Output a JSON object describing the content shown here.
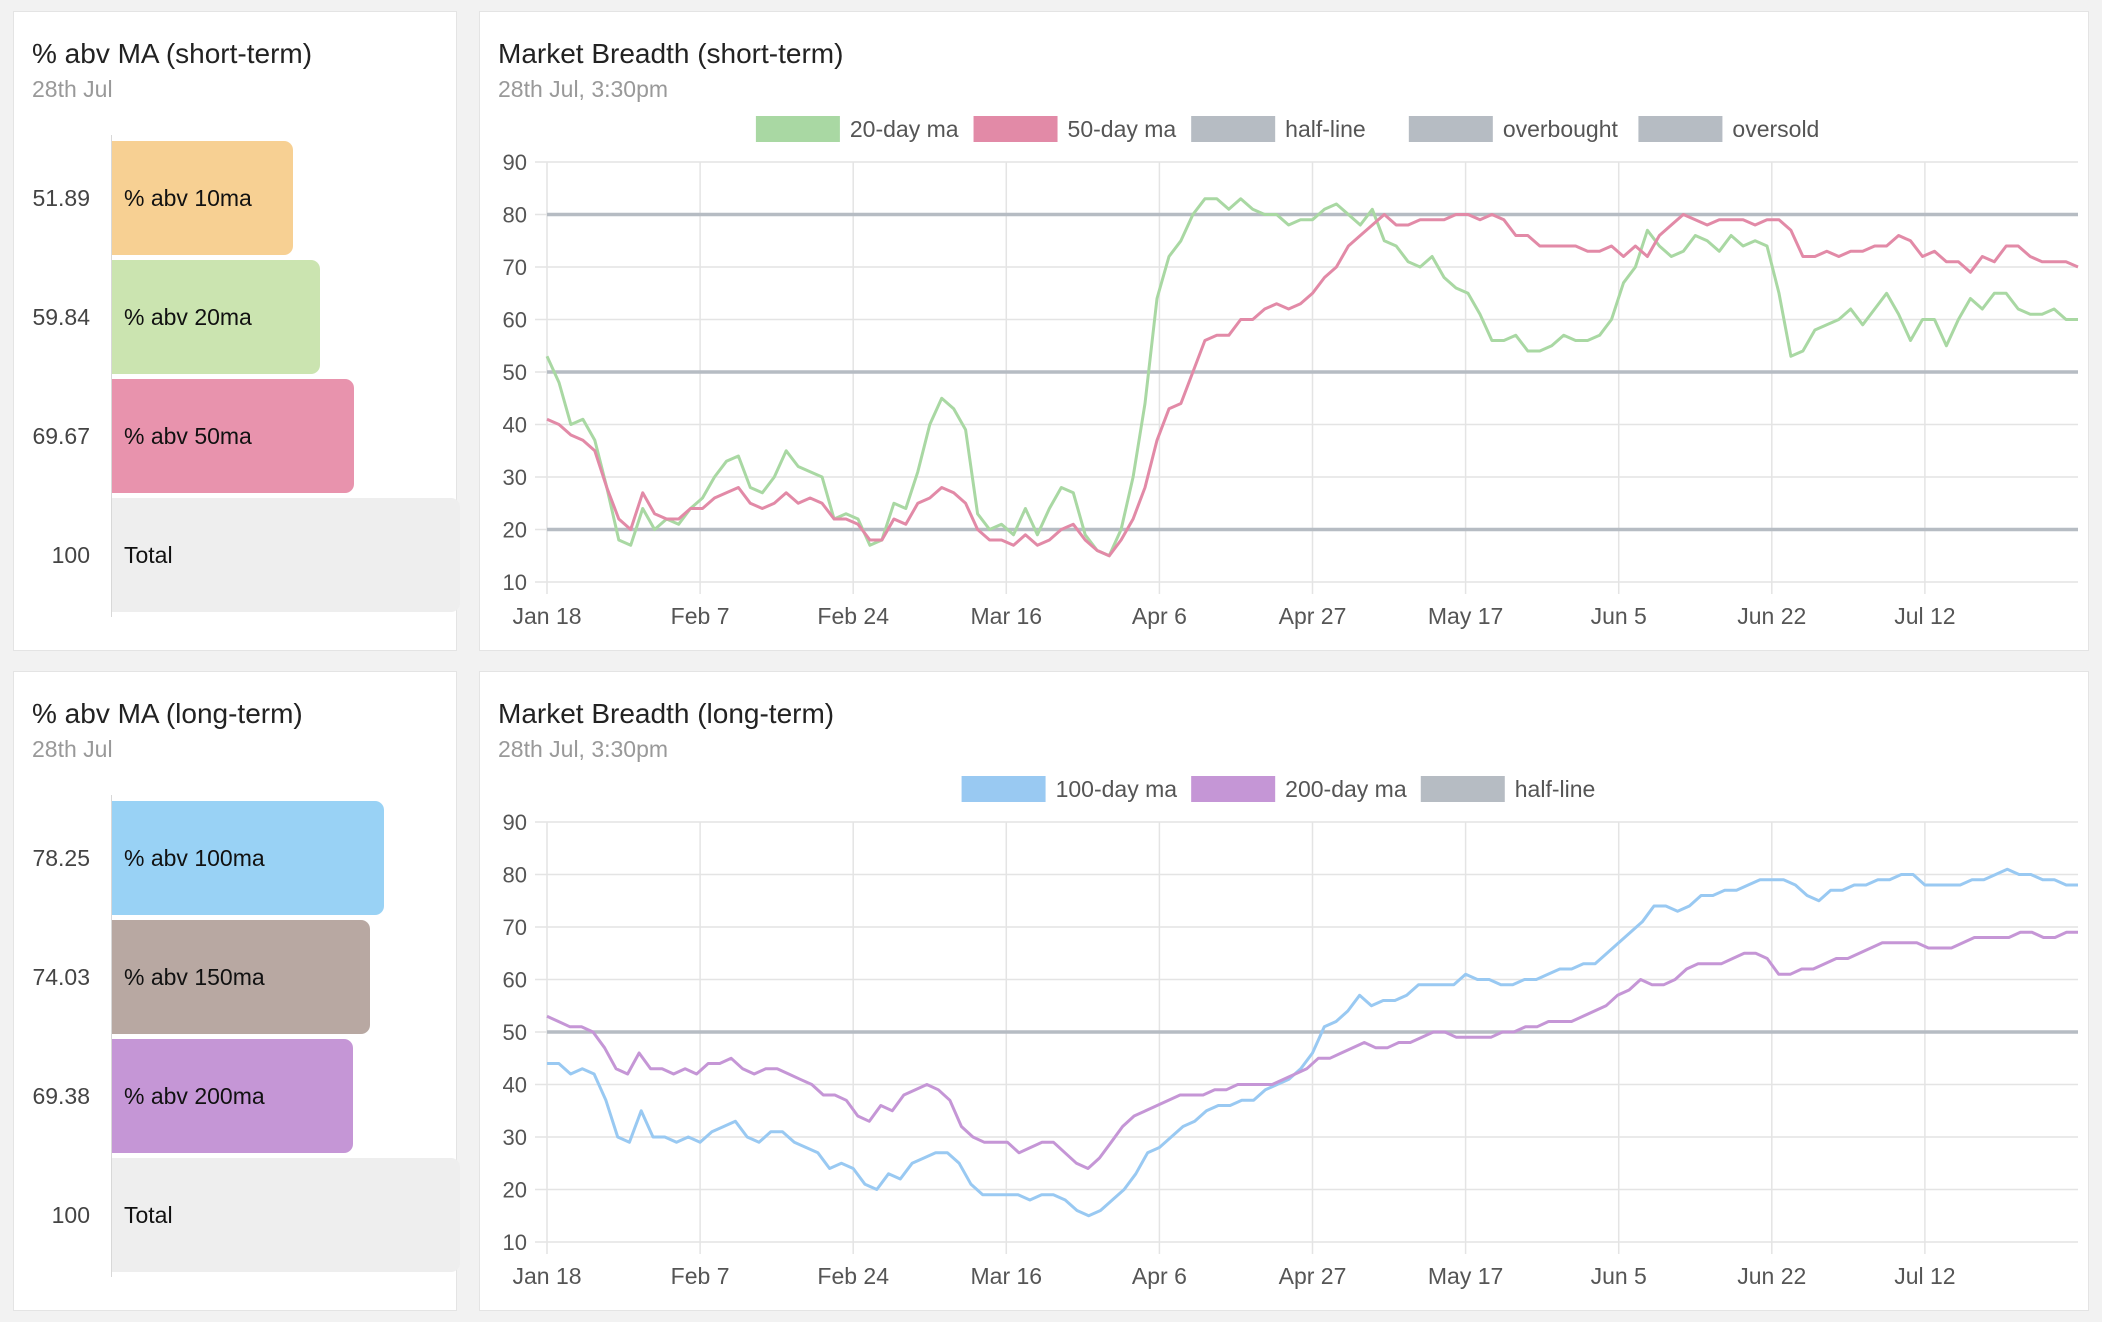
{
  "short_bars": {
    "title": "% abv MA (short-term)",
    "subtitle": "28th Jul",
    "bars": [
      {
        "label": "% abv 10ma",
        "value": 51.89,
        "value_text": "51.89",
        "color": "#f7d093"
      },
      {
        "label": "% abv 20ma",
        "value": 59.84,
        "value_text": "59.84",
        "color": "#cbe4b0"
      },
      {
        "label": "% abv 50ma",
        "value": 69.67,
        "value_text": "69.67",
        "color": "#e893ad"
      },
      {
        "label": "Total",
        "value": 100,
        "value_text": "100",
        "color": "#eeeeee"
      }
    ]
  },
  "long_bars": {
    "title": "% abv MA (long-term)",
    "subtitle": "28th Jul",
    "bars": [
      {
        "label": "% abv 100ma",
        "value": 78.25,
        "value_text": "78.25",
        "color": "#99d2f5"
      },
      {
        "label": "% abv 150ma",
        "value": 74.03,
        "value_text": "74.03",
        "color": "#b8a8a2"
      },
      {
        "label": "% abv 200ma",
        "value": 69.38,
        "value_text": "69.38",
        "color": "#c596d6"
      },
      {
        "label": "Total",
        "value": 100,
        "value_text": "100",
        "color": "#eeeeee"
      }
    ]
  },
  "short_chart": {
    "title": "Market Breadth (short-term)",
    "subtitle": "28th Jul, 3:30pm"
  },
  "long_chart": {
    "title": "Market Breadth (long-term)",
    "subtitle": "28th Jul, 3:30pm"
  },
  "chart_data": [
    {
      "type": "bar",
      "orientation": "horizontal",
      "title": "% abv MA (short-term)",
      "categories": [
        "% abv 10ma",
        "% abv 20ma",
        "% abv 50ma",
        "Total"
      ],
      "values": [
        51.89,
        59.84,
        69.67,
        100
      ]
    },
    {
      "type": "line",
      "title": "Market Breadth (short-term)",
      "x_ticks": [
        "Jan 18",
        "Feb 7",
        "Feb 24",
        "Mar 16",
        "Apr 6",
        "Apr 27",
        "May 17",
        "Jun 5",
        "Jun 22",
        "Jul 12"
      ],
      "ylim": [
        10,
        90
      ],
      "y_ticks": [
        10,
        20,
        30,
        40,
        50,
        60,
        70,
        80,
        90
      ],
      "grid": true,
      "legend": "top",
      "series": [
        {
          "name": "20-day ma",
          "color": "#a9d8a3",
          "values": [
            53,
            48,
            40,
            41,
            37,
            28,
            18,
            17,
            24,
            20,
            22,
            21,
            24,
            26,
            30,
            33,
            34,
            28,
            27,
            30,
            35,
            32,
            31,
            30,
            22,
            23,
            22,
            17,
            18,
            25,
            24,
            31,
            40,
            45,
            43,
            39,
            23,
            20,
            21,
            19,
            24,
            19,
            24,
            28,
            27,
            19,
            16,
            15,
            20,
            30,
            44,
            64,
            72,
            75,
            80,
            83,
            83,
            81,
            83,
            81,
            80,
            80,
            78,
            79,
            79,
            81,
            82,
            80,
            78,
            81,
            75,
            74,
            71,
            70,
            72,
            68,
            66,
            65,
            61,
            56,
            56,
            57,
            54,
            54,
            55,
            57,
            56,
            56,
            57,
            60,
            67,
            70,
            77,
            74,
            72,
            73,
            76,
            75,
            73,
            76,
            74,
            75,
            74,
            65,
            53,
            54,
            58,
            59,
            60,
            62,
            59,
            62,
            65,
            61,
            56,
            60,
            60,
            55,
            60,
            64,
            62,
            65,
            65,
            62,
            61,
            61,
            62,
            60,
            60
          ]
        },
        {
          "name": "50-day ma",
          "color": "#e28aa7",
          "values": [
            41,
            40,
            38,
            37,
            35,
            28,
            22,
            20,
            27,
            23,
            22,
            22,
            24,
            24,
            26,
            27,
            28,
            25,
            24,
            25,
            27,
            25,
            26,
            25,
            22,
            22,
            21,
            18,
            18,
            22,
            21,
            25,
            26,
            28,
            27,
            25,
            20,
            18,
            18,
            17,
            19,
            17,
            18,
            20,
            21,
            18,
            16,
            15,
            18,
            22,
            28,
            37,
            43,
            44,
            50,
            56,
            57,
            57,
            60,
            60,
            62,
            63,
            62,
            63,
            65,
            68,
            70,
            74,
            76,
            78,
            80,
            78,
            78,
            79,
            79,
            79,
            80,
            80,
            79,
            80,
            79,
            76,
            76,
            74,
            74,
            74,
            74,
            73,
            73,
            74,
            72,
            74,
            72,
            76,
            78,
            80,
            79,
            78,
            79,
            79,
            79,
            78,
            79,
            79,
            77,
            72,
            72,
            73,
            72,
            73,
            73,
            74,
            74,
            76,
            75,
            72,
            73,
            71,
            71,
            69,
            72,
            71,
            74,
            74,
            72,
            71,
            71,
            71,
            70
          ]
        },
        {
          "name": "half-line",
          "color": "#b6bcc3",
          "values": [
            50,
            50
          ]
        },
        {
          "name": "overbought",
          "color": "#b6bcc3",
          "values": [
            80,
            80
          ]
        },
        {
          "name": "oversold",
          "color": "#b6bcc3",
          "values": [
            20,
            20
          ]
        }
      ]
    },
    {
      "type": "bar",
      "orientation": "horizontal",
      "title": "% abv MA (long-term)",
      "categories": [
        "% abv 100ma",
        "% abv 150ma",
        "% abv 200ma",
        "Total"
      ],
      "values": [
        78.25,
        74.03,
        69.38,
        100
      ]
    },
    {
      "type": "line",
      "title": "Market Breadth (long-term)",
      "x_ticks": [
        "Jan 18",
        "Feb 7",
        "Feb 24",
        "Mar 16",
        "Apr 6",
        "Apr 27",
        "May 17",
        "Jun 5",
        "Jun 22",
        "Jul 12"
      ],
      "ylim": [
        10,
        90
      ],
      "y_ticks": [
        10,
        20,
        30,
        40,
        50,
        60,
        70,
        80,
        90
      ],
      "grid": true,
      "legend": "top",
      "series": [
        {
          "name": "100-day ma",
          "color": "#99c9f2",
          "values": [
            44,
            44,
            42,
            43,
            42,
            37,
            30,
            29,
            35,
            30,
            30,
            29,
            30,
            29,
            31,
            32,
            33,
            30,
            29,
            31,
            31,
            29,
            28,
            27,
            24,
            25,
            24,
            21,
            20,
            23,
            22,
            25,
            26,
            27,
            27,
            25,
            21,
            19,
            19,
            19,
            19,
            18,
            19,
            19,
            18,
            16,
            15,
            16,
            18,
            20,
            23,
            27,
            28,
            30,
            32,
            33,
            35,
            36,
            36,
            37,
            37,
            39,
            40,
            41,
            43,
            46,
            51,
            52,
            54,
            57,
            55,
            56,
            56,
            57,
            59,
            59,
            59,
            59,
            61,
            60,
            60,
            59,
            59,
            60,
            60,
            61,
            62,
            62,
            63,
            63,
            65,
            67,
            69,
            71,
            74,
            74,
            73,
            74,
            76,
            76,
            77,
            77,
            78,
            79,
            79,
            79,
            78,
            76,
            75,
            77,
            77,
            78,
            78,
            79,
            79,
            80,
            80,
            78,
            78,
            78,
            78,
            79,
            79,
            80,
            81,
            80,
            80,
            79,
            79,
            78,
            78
          ]
        },
        {
          "name": "200-day ma",
          "color": "#c596d6",
          "values": [
            53,
            52,
            51,
            51,
            50,
            47,
            43,
            42,
            46,
            43,
            43,
            42,
            43,
            42,
            44,
            44,
            45,
            43,
            42,
            43,
            43,
            42,
            41,
            40,
            38,
            38,
            37,
            34,
            33,
            36,
            35,
            38,
            39,
            40,
            39,
            37,
            32,
            30,
            29,
            29,
            29,
            27,
            28,
            29,
            29,
            27,
            25,
            24,
            26,
            29,
            32,
            34,
            35,
            36,
            37,
            38,
            38,
            38,
            39,
            39,
            40,
            40,
            40,
            40,
            41,
            42,
            43,
            45,
            45,
            46,
            47,
            48,
            47,
            47,
            48,
            48,
            49,
            50,
            50,
            49,
            49,
            49,
            49,
            50,
            50,
            51,
            51,
            52,
            52,
            52,
            53,
            54,
            55,
            57,
            58,
            60,
            59,
            59,
            60,
            62,
            63,
            63,
            63,
            64,
            65,
            65,
            64,
            61,
            61,
            62,
            62,
            63,
            64,
            64,
            65,
            66,
            67,
            67,
            67,
            67,
            66,
            66,
            66,
            67,
            68,
            68,
            68,
            68,
            69,
            69,
            68,
            68,
            69,
            69
          ]
        },
        {
          "name": "half-line",
          "color": "#b6bcc3",
          "values": [
            50,
            50
          ]
        }
      ]
    }
  ]
}
